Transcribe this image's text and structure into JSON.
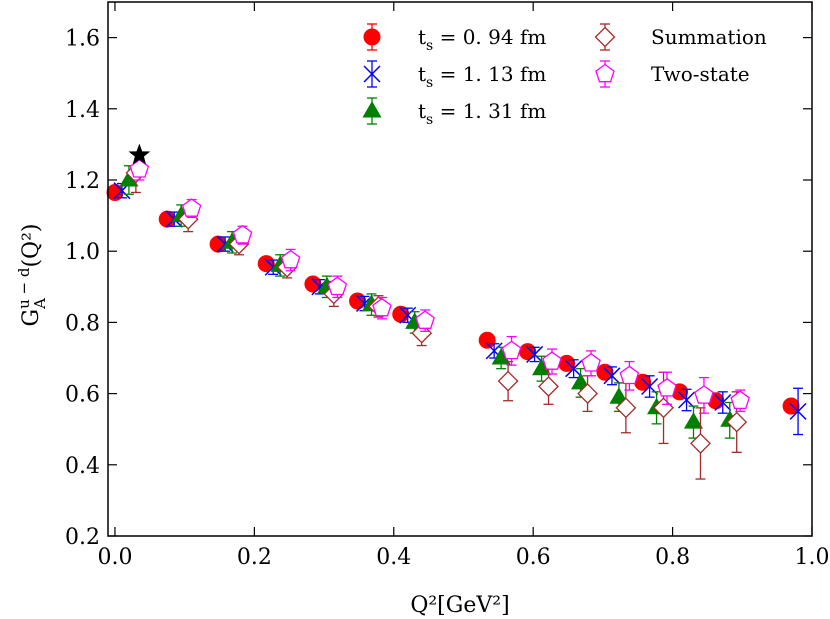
{
  "chart_data": {
    "type": "scatter",
    "xlabel": "Q²[GeV²]",
    "ylabel_main": "G",
    "ylabel_sup": "u − d",
    "ylabel_sub": "A",
    "ylabel_tail": "(Q²)",
    "xlim": [
      -0.01,
      1.0
    ],
    "ylim": [
      0.2,
      1.7
    ],
    "xticks": [
      0.0,
      0.2,
      0.4,
      0.6,
      0.8,
      1.0
    ],
    "xtick_labels": [
      "0.0",
      "0.2",
      "0.4",
      "0.6",
      "0.8",
      "1.0"
    ],
    "yticks": [
      0.2,
      0.4,
      0.6,
      0.8,
      1.0,
      1.2,
      1.4,
      1.6
    ],
    "ytick_labels": [
      "0.2",
      "0.4",
      "0.6",
      "0.8",
      "1.0",
      "1.2",
      "1.4",
      "1.6"
    ],
    "grid": false,
    "legend_position": "top-right",
    "series": [
      {
        "name": "t_s = 0.94 fm",
        "marker": "circle",
        "color": "#ff0000",
        "x": [
          0.0,
          0.075,
          0.148,
          0.217,
          0.284,
          0.348,
          0.41,
          0.534,
          0.592,
          0.648,
          0.703,
          0.757,
          0.81,
          0.862,
          0.97
        ],
        "y": [
          1.165,
          1.09,
          1.02,
          0.965,
          0.908,
          0.86,
          0.823,
          0.75,
          0.718,
          0.685,
          0.66,
          0.632,
          0.605,
          0.58,
          0.565
        ],
        "err": [
          0.015,
          0.015,
          0.015,
          0.015,
          0.015,
          0.015,
          0.015,
          0.015,
          0.015,
          0.015,
          0.015,
          0.015,
          0.015,
          0.015,
          0.015
        ]
      },
      {
        "name": "t_s = 1.13 fm",
        "marker": "x",
        "color": "#0000ff",
        "x": [
          0.01,
          0.085,
          0.158,
          0.227,
          0.294,
          0.358,
          0.42,
          0.544,
          0.602,
          0.658,
          0.713,
          0.767,
          0.82,
          0.872,
          0.98
        ],
        "y": [
          1.17,
          1.09,
          1.02,
          0.955,
          0.9,
          0.853,
          0.82,
          0.72,
          0.71,
          0.67,
          0.65,
          0.62,
          0.582,
          0.575,
          0.55
        ],
        "err": [
          0.02,
          0.02,
          0.02,
          0.02,
          0.02,
          0.02,
          0.02,
          0.02,
          0.02,
          0.025,
          0.025,
          0.03,
          0.03,
          0.03,
          0.065
        ]
      },
      {
        "name": "t_s = 1.31 fm",
        "marker": "triangle",
        "color": "#008000",
        "x": [
          0.02,
          0.095,
          0.168,
          0.237,
          0.304,
          0.368,
          0.43,
          0.554,
          0.612,
          0.668,
          0.723,
          0.777,
          0.83,
          0.882
        ],
        "y": [
          1.2,
          1.1,
          1.025,
          0.96,
          0.9,
          0.85,
          0.8,
          0.7,
          0.67,
          0.63,
          0.59,
          0.56,
          0.52,
          0.525
        ],
        "err": [
          0.04,
          0.03,
          0.03,
          0.03,
          0.03,
          0.03,
          0.03,
          0.03,
          0.035,
          0.04,
          0.04,
          0.045,
          0.045,
          0.05
        ]
      },
      {
        "name": "Summation",
        "marker": "diamond",
        "color": "#a52a2a",
        "x": [
          0.03,
          0.105,
          0.178,
          0.247,
          0.314,
          0.378,
          0.44,
          0.564,
          0.622,
          0.678,
          0.733,
          0.787,
          0.84,
          0.892
        ],
        "y": [
          1.22,
          1.09,
          1.02,
          0.955,
          0.88,
          0.845,
          0.77,
          0.635,
          0.62,
          0.6,
          0.56,
          0.56,
          0.46,
          0.52
        ],
        "err": [
          0.055,
          0.035,
          0.03,
          0.03,
          0.035,
          0.03,
          0.035,
          0.055,
          0.05,
          0.05,
          0.07,
          0.1,
          0.1,
          0.085
        ]
      },
      {
        "name": "Two-state",
        "marker": "pentagon",
        "color": "#ff00ff",
        "x": [
          0.035,
          0.11,
          0.183,
          0.252,
          0.319,
          0.383,
          0.445,
          0.569,
          0.627,
          0.683,
          0.738,
          0.792,
          0.845,
          0.897
        ],
        "y": [
          1.23,
          1.12,
          1.045,
          0.975,
          0.9,
          0.84,
          0.805,
          0.72,
          0.69,
          0.685,
          0.65,
          0.615,
          0.595,
          0.58
        ],
        "err": [
          0.03,
          0.025,
          0.025,
          0.03,
          0.03,
          0.03,
          0.03,
          0.04,
          0.035,
          0.035,
          0.04,
          0.045,
          0.05,
          0.03
        ]
      }
    ],
    "extra_points": [
      {
        "marker": "star",
        "color": "#000000",
        "x": 0.035,
        "y": 1.27
      }
    ],
    "legend": [
      {
        "label_main": "t",
        "label_sub": "s",
        "label_tail": " = 0. 94 fm",
        "series": 0
      },
      {
        "label_main": "t",
        "label_sub": "s",
        "label_tail": " = 1. 13 fm",
        "series": 1
      },
      {
        "label_main": "t",
        "label_sub": "s",
        "label_tail": " = 1. 31 fm",
        "series": 2
      },
      {
        "label_main": "Summation",
        "label_sub": "",
        "label_tail": "",
        "series": 3
      },
      {
        "label_main": "Two-state",
        "label_sub": "",
        "label_tail": "",
        "series": 4
      }
    ]
  }
}
